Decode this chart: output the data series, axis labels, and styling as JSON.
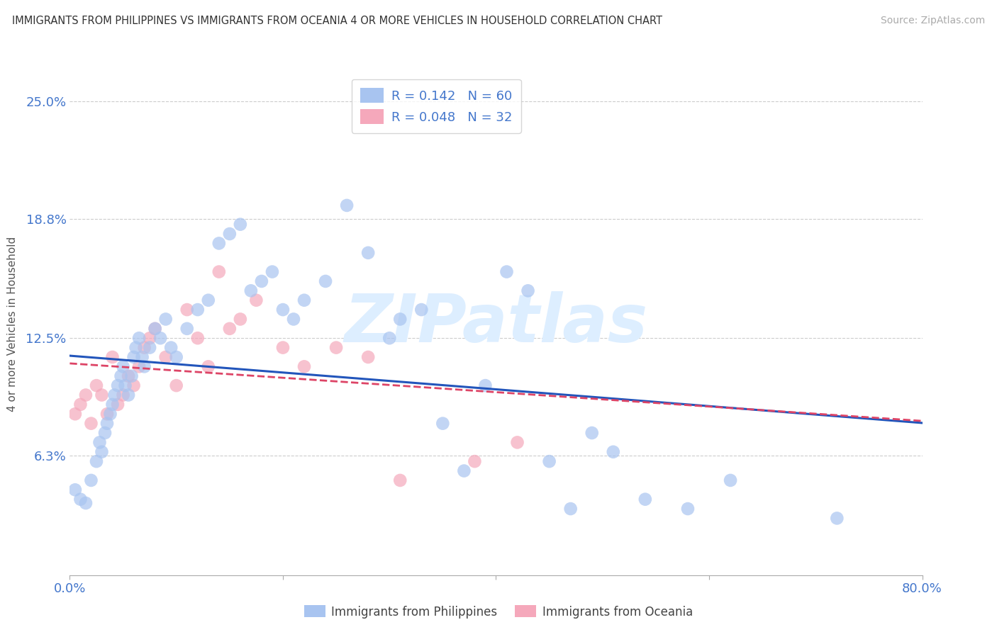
{
  "title": "IMMIGRANTS FROM PHILIPPINES VS IMMIGRANTS FROM OCEANIA 4 OR MORE VEHICLES IN HOUSEHOLD CORRELATION CHART",
  "source": "Source: ZipAtlas.com",
  "ylabel": "4 or more Vehicles in Household",
  "legend_label1": "Immigrants from Philippines",
  "legend_label2": "Immigrants from Oceania",
  "R1": 0.142,
  "N1": 60,
  "R2": 0.048,
  "N2": 32,
  "xlim": [
    0.0,
    0.8
  ],
  "ylim": [
    0.0,
    0.265
  ],
  "ytick_vals": [
    0.0,
    0.063,
    0.125,
    0.188,
    0.25
  ],
  "ytick_labels": [
    "",
    "6.3%",
    "12.5%",
    "18.8%",
    "25.0%"
  ],
  "xtick_vals": [
    0.0,
    0.2,
    0.4,
    0.6,
    0.8
  ],
  "xtick_labels": [
    "0.0%",
    "",
    "",
    "",
    "80.0%"
  ],
  "color_blue": "#a8c4f0",
  "color_pink": "#f5a8bb",
  "color_trend_blue": "#2255bb",
  "color_trend_pink": "#dd4466",
  "color_axis": "#4477cc",
  "color_grid": "#cccccc",
  "color_watermark": "#ddeeff",
  "blue_x": [
    0.005,
    0.01,
    0.015,
    0.02,
    0.025,
    0.028,
    0.03,
    0.033,
    0.035,
    0.038,
    0.04,
    0.042,
    0.045,
    0.048,
    0.05,
    0.052,
    0.055,
    0.058,
    0.06,
    0.062,
    0.065,
    0.068,
    0.07,
    0.075,
    0.08,
    0.085,
    0.09,
    0.095,
    0.1,
    0.11,
    0.12,
    0.13,
    0.14,
    0.15,
    0.16,
    0.17,
    0.18,
    0.19,
    0.2,
    0.21,
    0.22,
    0.24,
    0.26,
    0.28,
    0.3,
    0.31,
    0.33,
    0.35,
    0.37,
    0.39,
    0.41,
    0.43,
    0.45,
    0.47,
    0.49,
    0.51,
    0.54,
    0.58,
    0.62,
    0.72
  ],
  "blue_y": [
    0.045,
    0.04,
    0.038,
    0.05,
    0.06,
    0.07,
    0.065,
    0.075,
    0.08,
    0.085,
    0.09,
    0.095,
    0.1,
    0.105,
    0.11,
    0.1,
    0.095,
    0.105,
    0.115,
    0.12,
    0.125,
    0.115,
    0.11,
    0.12,
    0.13,
    0.125,
    0.135,
    0.12,
    0.115,
    0.13,
    0.14,
    0.145,
    0.175,
    0.18,
    0.185,
    0.15,
    0.155,
    0.16,
    0.14,
    0.135,
    0.145,
    0.155,
    0.195,
    0.17,
    0.125,
    0.135,
    0.14,
    0.08,
    0.055,
    0.1,
    0.16,
    0.15,
    0.06,
    0.035,
    0.075,
    0.065,
    0.04,
    0.035,
    0.05,
    0.03
  ],
  "pink_x": [
    0.005,
    0.01,
    0.015,
    0.02,
    0.025,
    0.03,
    0.035,
    0.04,
    0.045,
    0.05,
    0.055,
    0.06,
    0.065,
    0.07,
    0.075,
    0.08,
    0.09,
    0.1,
    0.11,
    0.12,
    0.13,
    0.14,
    0.15,
    0.16,
    0.175,
    0.2,
    0.22,
    0.25,
    0.28,
    0.31,
    0.38,
    0.42
  ],
  "pink_y": [
    0.085,
    0.09,
    0.095,
    0.08,
    0.1,
    0.095,
    0.085,
    0.115,
    0.09,
    0.095,
    0.105,
    0.1,
    0.11,
    0.12,
    0.125,
    0.13,
    0.115,
    0.1,
    0.14,
    0.125,
    0.11,
    0.16,
    0.13,
    0.135,
    0.145,
    0.12,
    0.11,
    0.12,
    0.115,
    0.05,
    0.06,
    0.07
  ]
}
